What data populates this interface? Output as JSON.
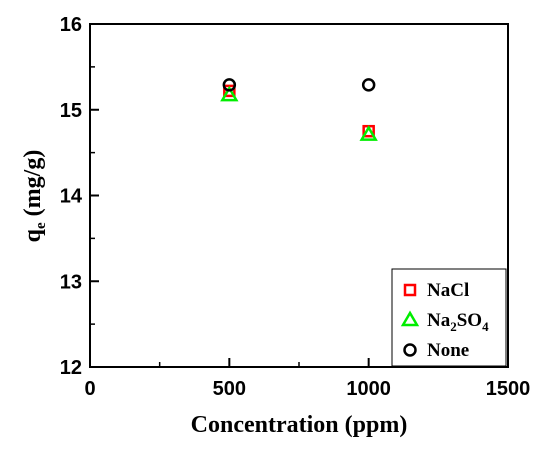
{
  "chart_data": {
    "type": "scatter",
    "xlabel": "Concentration (ppm)",
    "ylabel": "q",
    "ylabel_sub": "e",
    "ylabel_unit": " (mg/g)",
    "xlim": [
      0,
      1500
    ],
    "ylim": [
      12,
      16
    ],
    "xticks": [
      "0",
      "500",
      "1000",
      "1500"
    ],
    "yticks": [
      "12",
      "13",
      "14",
      "15",
      "16"
    ],
    "grid": false,
    "legend_position": "bottom-right",
    "series": [
      {
        "name": "NaCl",
        "label_parts": [
          "NaCl"
        ],
        "marker": "square",
        "color": "#ff0000",
        "points": [
          {
            "x": 500,
            "y": 15.22
          },
          {
            "x": 1000,
            "y": 14.75
          }
        ]
      },
      {
        "name": "Na2SO4",
        "label_parts": [
          "Na",
          "2",
          "SO",
          "4"
        ],
        "marker": "triangle",
        "color": "#00ee00",
        "points": [
          {
            "x": 500,
            "y": 15.17
          },
          {
            "x": 1000,
            "y": 14.71
          }
        ]
      },
      {
        "name": "None",
        "label_parts": [
          "None"
        ],
        "marker": "circle",
        "color": "#000000",
        "points": [
          {
            "x": 500,
            "y": 15.29
          },
          {
            "x": 1000,
            "y": 15.29
          }
        ]
      }
    ]
  }
}
